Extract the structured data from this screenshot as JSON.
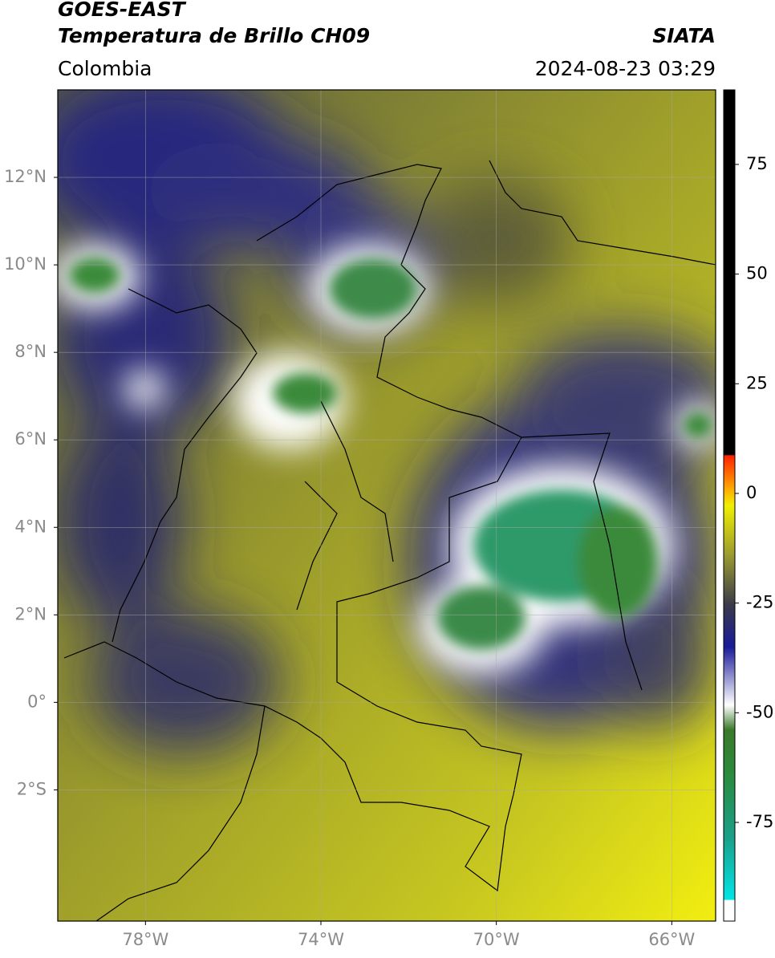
{
  "header": {
    "title": "GOES-EAST",
    "subtitle": "Temperatura de Brillo CH09",
    "source": "SIATA",
    "region": "Colombia",
    "datetime": "2024-08-23 03:29"
  },
  "map": {
    "xlim": [
      -80,
      -65
    ],
    "ylim": [
      -5,
      14
    ],
    "grid": true,
    "xticks": [
      {
        "value": -78,
        "label": "78°W"
      },
      {
        "value": -74,
        "label": "74°W"
      },
      {
        "value": -70,
        "label": "70°W"
      },
      {
        "value": -66,
        "label": "66°W"
      }
    ],
    "yticks": [
      {
        "value": -2,
        "label": "2°S"
      },
      {
        "value": 0,
        "label": "0°"
      },
      {
        "value": 2,
        "label": "2°N"
      },
      {
        "value": 4,
        "label": "4°N"
      },
      {
        "value": 6,
        "label": "6°N"
      },
      {
        "value": 8,
        "label": "8°N"
      },
      {
        "value": 10,
        "label": "10°N"
      },
      {
        "value": 12,
        "label": "12°N"
      }
    ]
  },
  "colorbar": {
    "lim": [
      -97.5,
      92
    ],
    "ticks": [
      75,
      50,
      25,
      0,
      -25,
      -50,
      -75
    ]
  }
}
